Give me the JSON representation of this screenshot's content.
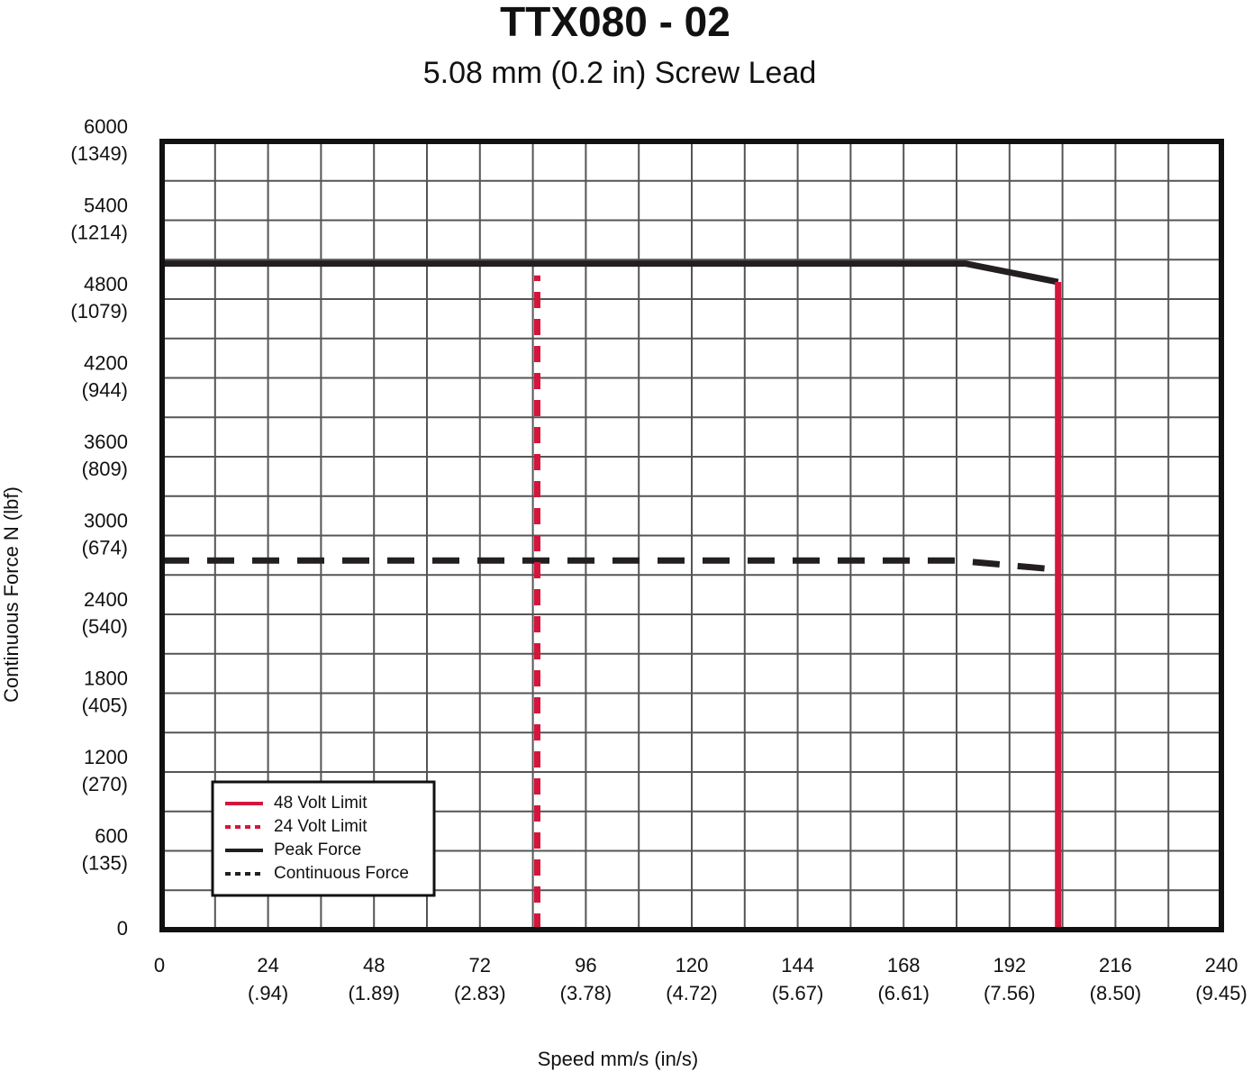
{
  "chart_data": {
    "type": "line",
    "title": "TTX080 - 02",
    "subtitle": "5.08 mm (0.2 in) Screw Lead",
    "x_label": "Speed mm/s (in/s)",
    "y_label": "Continuous Force N (lbf)",
    "xlim": [
      0,
      240
    ],
    "ylim": [
      0,
      6000
    ],
    "xticks": [
      0,
      {
        "value": 24,
        "label": [
          "24",
          "(.94)"
        ]
      },
      {
        "value": 48,
        "label": [
          "48",
          "(1.89)"
        ]
      },
      {
        "value": 72,
        "label": [
          "72",
          "(2.83)"
        ]
      },
      {
        "value": 96,
        "label": [
          "96",
          "(3.78)"
        ]
      },
      {
        "value": 120,
        "label": [
          "120",
          "(4.72)"
        ]
      },
      {
        "value": 144,
        "label": [
          "144",
          "(5.67)"
        ]
      },
      {
        "value": 168,
        "label": [
          "168",
          "(6.61)"
        ]
      },
      {
        "value": 192,
        "label": [
          "192",
          "(7.56)"
        ]
      },
      {
        "value": 216,
        "label": [
          "216",
          "(8.50)"
        ]
      },
      {
        "value": 240,
        "label": [
          "240",
          "(9.45)"
        ]
      }
    ],
    "yticks": [
      0,
      {
        "value": 600,
        "label": [
          "600",
          "(135)"
        ]
      },
      {
        "value": 1200,
        "label": [
          "1200",
          "(270)"
        ]
      },
      {
        "value": 1800,
        "label": [
          "1800",
          "(405)"
        ]
      },
      {
        "value": 2400,
        "label": [
          "2400",
          "(540)"
        ]
      },
      {
        "value": 3000,
        "label": [
          "3000",
          "(674)"
        ]
      },
      {
        "value": 3600,
        "label": [
          "3600",
          "(809)"
        ]
      },
      {
        "value": 4200,
        "label": [
          "4200",
          "(944)"
        ]
      },
      {
        "value": 4800,
        "label": [
          "4800",
          "(1079)"
        ]
      },
      {
        "value": 5400,
        "label": [
          "5400",
          "(1214)"
        ]
      },
      {
        "value": 6000,
        "label": [
          "6000",
          "(1349)"
        ]
      }
    ],
    "grid": true,
    "legend": "lower left",
    "series": [
      {
        "name": "48 Volt Limit",
        "color": "#d4163c",
        "style": "solid",
        "x": [
          203,
          203
        ],
        "values": [
          0,
          4930
        ]
      },
      {
        "name": "24 Volt Limit",
        "color": "#d4163c",
        "style": "dashed",
        "x": [
          85,
          85
        ],
        "values": [
          0,
          4980
        ]
      },
      {
        "name": "Peak Force",
        "color": "#231f20",
        "style": "solid",
        "x": [
          0,
          182,
          203
        ],
        "values": [
          5070,
          5070,
          4930
        ]
      },
      {
        "name": "Continuous Force",
        "color": "#231f20",
        "style": "dashed",
        "x": [
          0,
          180,
          203
        ],
        "values": [
          2810,
          2810,
          2740
        ]
      }
    ]
  }
}
